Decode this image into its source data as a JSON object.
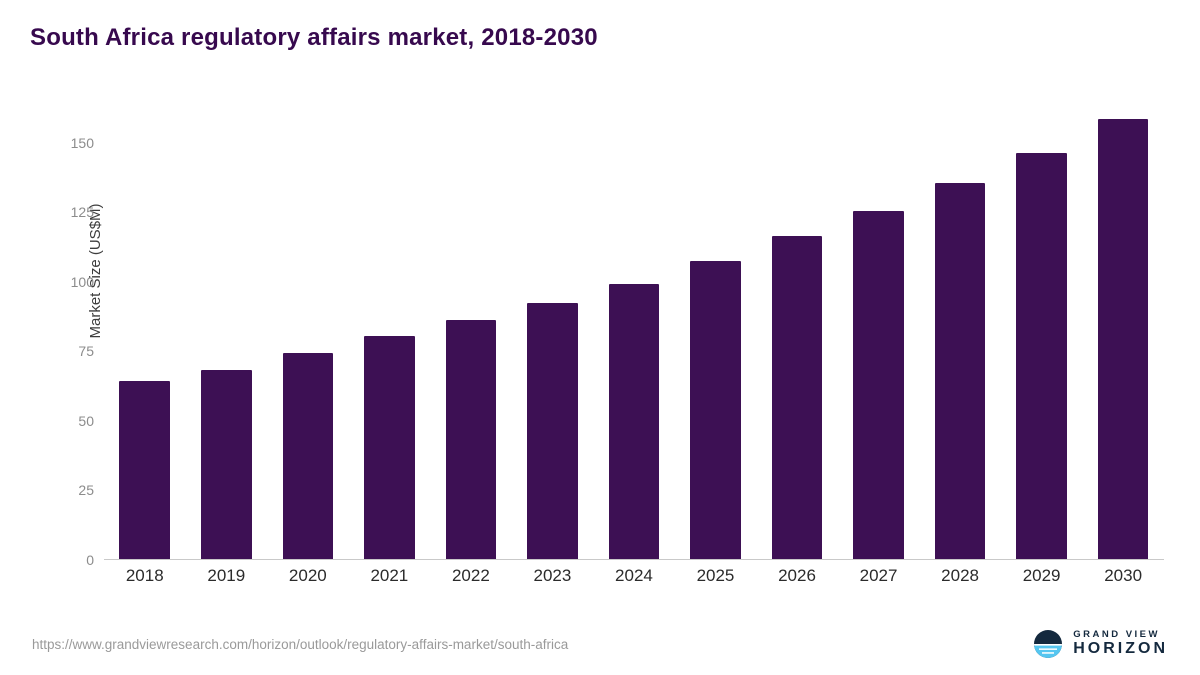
{
  "title": "South Africa regulatory affairs market, 2018-2030",
  "chart_data": {
    "type": "bar",
    "categories": [
      "2018",
      "2019",
      "2020",
      "2021",
      "2022",
      "2023",
      "2024",
      "2025",
      "2026",
      "2027",
      "2028",
      "2029",
      "2030"
    ],
    "values": [
      64,
      68,
      74,
      80,
      86,
      92,
      99,
      107,
      116,
      125,
      135,
      146,
      158
    ],
    "title": "South Africa regulatory affairs market, 2018-2030",
    "xlabel": "",
    "ylabel": "Market Size (US$M)",
    "ylim": [
      0,
      165
    ],
    "yticks": [
      0,
      25,
      50,
      75,
      100,
      125,
      150
    ],
    "grid": false,
    "legend": false,
    "bar_color": "#3d1054"
  },
  "colors": {
    "title": "#37094e",
    "bar": "#3d1054",
    "axis_line": "#c9c9c9",
    "tick_text": "#8c8c8c",
    "x_text": "#2b2b2b",
    "brand_navy": "#14293e",
    "brand_blue": "#55c6f0"
  },
  "footer": {
    "source_url": "https://www.grandviewresearch.com/horizon/outlook/regulatory-affairs-market/south-africa"
  },
  "logo": {
    "line1": "GRAND VIEW",
    "line2": "HORIZON"
  }
}
